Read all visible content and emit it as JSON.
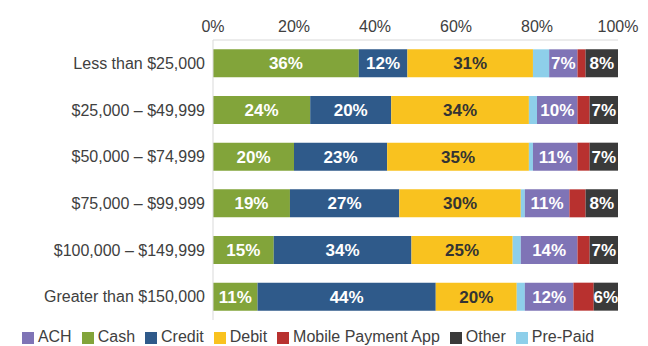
{
  "chart_data": {
    "type": "bar",
    "orientation": "horizontal",
    "stacked": true,
    "data_labels": true,
    "grid": false,
    "legend": "bottom",
    "categories": [
      "Less than $25,000",
      "$25,000 – $49,999",
      "$50,000 – $74,999",
      "$75,000 – $99,999",
      "$100,000 – $149,999",
      "Greater than $150,000"
    ],
    "xlim": [
      0,
      100
    ],
    "xticks": [
      {
        "value": 0,
        "label": "0%"
      },
      {
        "value": 20,
        "label": "20%"
      },
      {
        "value": 40,
        "label": "40%"
      },
      {
        "value": 60,
        "label": "60%"
      },
      {
        "value": 80,
        "label": "80%"
      },
      {
        "value": 100,
        "label": "100%"
      }
    ],
    "series": [
      {
        "name": "Cash",
        "color": "#82a43a",
        "values": [
          36,
          24,
          20,
          19,
          15,
          11
        ],
        "value_labels": [
          "36%",
          "24%",
          "20%",
          "19%",
          "15%",
          "11%"
        ]
      },
      {
        "name": "Credit",
        "color": "#2f5a8a",
        "values": [
          12,
          20,
          23,
          27,
          34,
          44
        ],
        "value_labels": [
          "12%",
          "20%",
          "23%",
          "27%",
          "34%",
          "44%"
        ]
      },
      {
        "name": "Debit",
        "color": "#f9c21f",
        "values": [
          31,
          34,
          35,
          30,
          25,
          20
        ],
        "value_labels": [
          "31%",
          "34%",
          "35%",
          "30%",
          "25%",
          "20%"
        ]
      },
      {
        "name": "Pre-Paid",
        "color": "#8ecfea",
        "values": [
          4,
          2,
          1,
          1,
          2,
          2
        ]
      },
      {
        "name": "ACH",
        "color": "#7f74b6",
        "values": [
          7,
          10,
          11,
          11,
          14,
          12
        ],
        "value_labels": [
          "7%",
          "10%",
          "11%",
          "11%",
          "14%",
          "12%"
        ]
      },
      {
        "name": "Mobile Payment App",
        "color": "#b8312f",
        "values": [
          2,
          3,
          3,
          4,
          3,
          5
        ]
      },
      {
        "name": "Other",
        "color": "#3a3a3a",
        "values": [
          8,
          7,
          7,
          8,
          7,
          6
        ],
        "value_labels": [
          "8%",
          "7%",
          "7%",
          "8%",
          "7%",
          "6%"
        ]
      }
    ]
  }
}
